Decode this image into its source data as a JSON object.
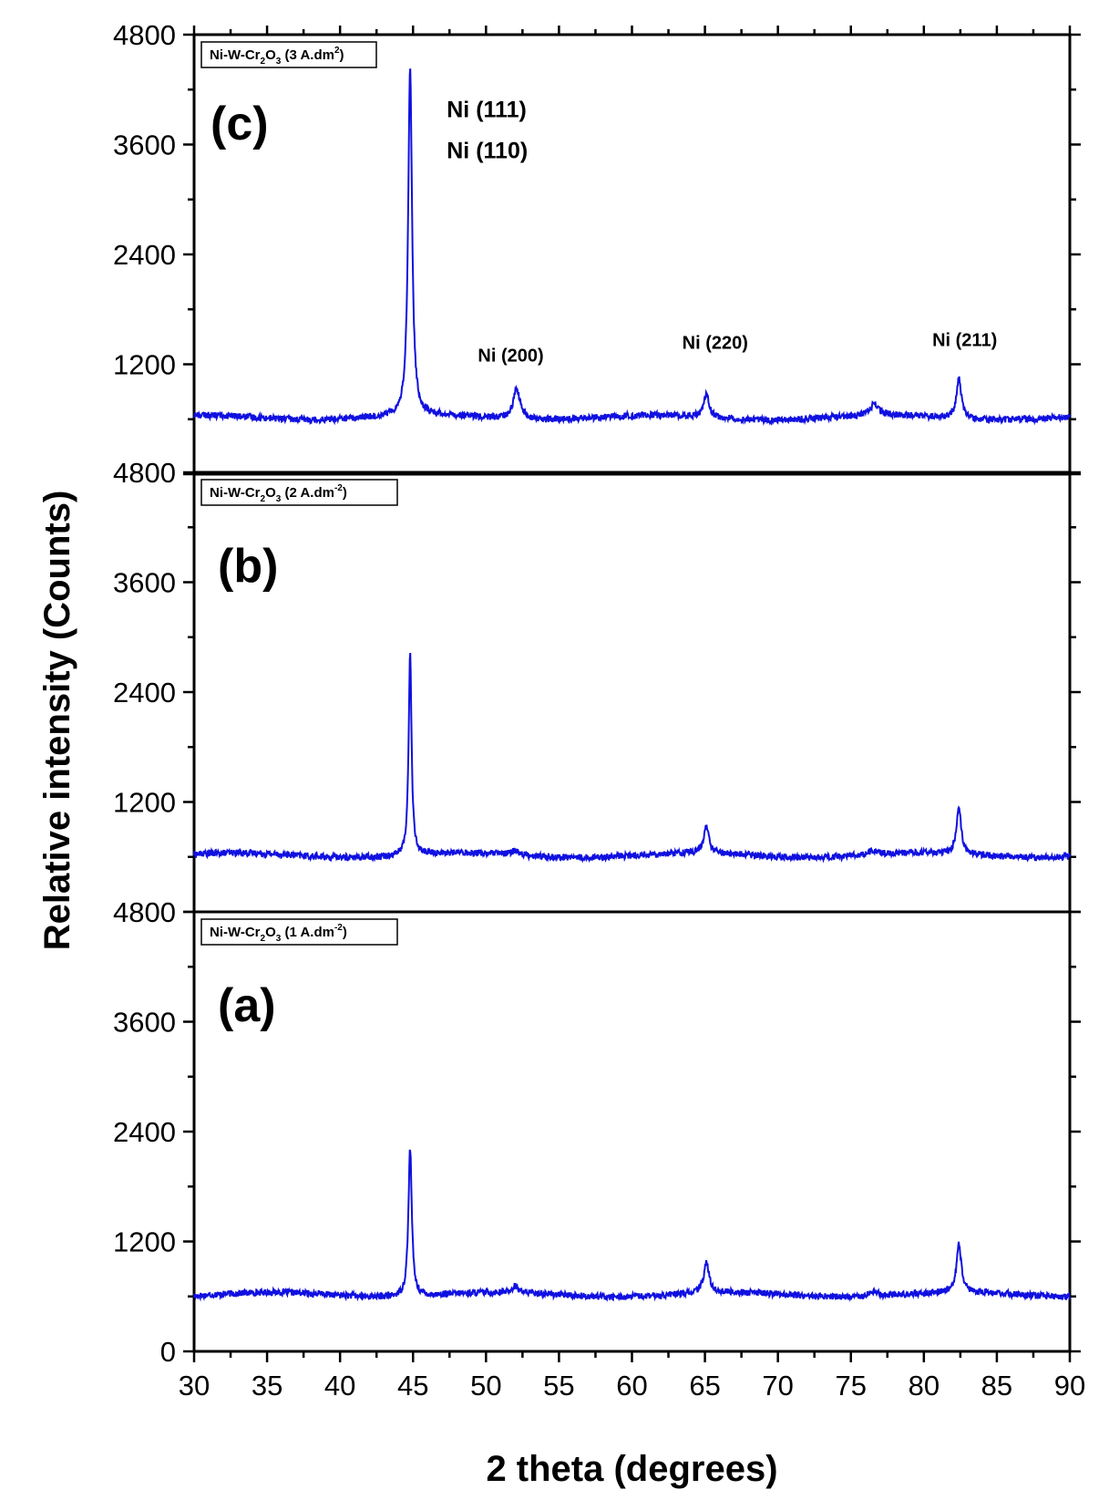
{
  "chart_data": {
    "type": "line",
    "xlabel": "2 theta (degrees)",
    "ylabel": "Relative intensity (Counts)",
    "xlim": [
      30,
      90
    ],
    "x_ticks": [
      "30",
      "35",
      "40",
      "45",
      "50",
      "55",
      "60",
      "65",
      "70",
      "75",
      "80",
      "85",
      "90"
    ],
    "ylim": [
      0,
      4800
    ],
    "y_ticks": [
      "0",
      "1200",
      "2400",
      "3600",
      "4800"
    ],
    "line_color": "#1010e0",
    "grid": false,
    "panels": [
      {
        "id": "a",
        "panel_label": "(a)",
        "legend": {
          "main": "Ni-W-Cr",
          "sub1": "2",
          "mid": "O",
          "sub2": "3",
          "tail": " (1 A.dm",
          "sup": "-2",
          "end": ")"
        },
        "baseline": 620,
        "peaks": [
          {
            "x": 44.8,
            "height": 1620,
            "width": 0.14
          },
          {
            "x": 52.0,
            "height": 70,
            "width": 0.25
          },
          {
            "x": 65.1,
            "height": 330,
            "width": 0.22
          },
          {
            "x": 76.5,
            "height": 50,
            "width": 0.4
          },
          {
            "x": 82.4,
            "height": 520,
            "width": 0.2
          }
        ]
      },
      {
        "id": "b",
        "panel_label": "(b)",
        "legend": {
          "main": "Ni-W-Cr",
          "sub1": "2",
          "mid": "O",
          "sub2": "3",
          "tail": " (2 A.dm",
          "sup": "-2",
          "end": ")"
        },
        "baseline": 620,
        "peaks": [
          {
            "x": 44.8,
            "height": 2200,
            "width": 0.12
          },
          {
            "x": 52.0,
            "height": 50,
            "width": 0.25
          },
          {
            "x": 65.1,
            "height": 300,
            "width": 0.2
          },
          {
            "x": 76.5,
            "height": 40,
            "width": 0.4
          },
          {
            "x": 82.4,
            "height": 530,
            "width": 0.18
          }
        ]
      },
      {
        "id": "c",
        "panel_label": "(c)",
        "legend": {
          "main": "Ni-W-Cr",
          "sub1": "2",
          "mid": "O",
          "sub2": "3",
          "tail": " (3 A.dm",
          "sup": "2",
          "end": ")"
        },
        "baseline": 620,
        "peaks": [
          {
            "x": 44.8,
            "height": 3800,
            "width": 0.16
          },
          {
            "x": 52.1,
            "height": 330,
            "width": 0.28
          },
          {
            "x": 65.1,
            "height": 250,
            "width": 0.2
          },
          {
            "x": 76.6,
            "height": 120,
            "width": 0.35
          },
          {
            "x": 82.4,
            "height": 430,
            "width": 0.2
          }
        ],
        "annotations": [
          {
            "text": "Ni (111)",
            "x": 45.0,
            "y": 3900,
            "large": true
          },
          {
            "text": "Ni (110)",
            "x": 45.0,
            "y": 3450,
            "large": true
          },
          {
            "text": "Ni (200)",
            "x": 51.7,
            "y": 1230,
            "large": false
          },
          {
            "text": "Ni (220)",
            "x": 65.7,
            "y": 1370,
            "large": false
          },
          {
            "text": "Ni (211)",
            "x": 82.8,
            "y": 1400,
            "large": false
          }
        ]
      }
    ]
  }
}
